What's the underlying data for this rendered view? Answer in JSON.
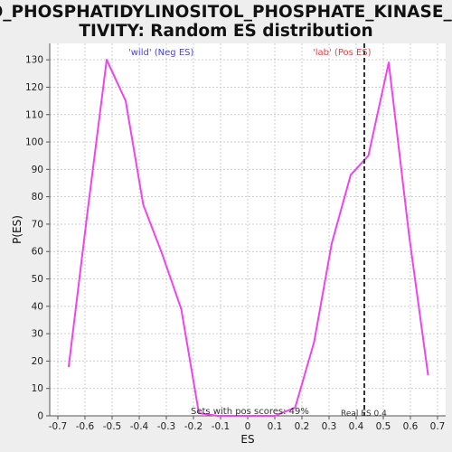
{
  "chart_data": {
    "type": "line",
    "title_lines": [
      "GO_PHOSPHATIDYLINOSITOL_PHOSPHATE_KINASE_AC",
      "TIVITY: Random ES distribution"
    ],
    "xlabel": "ES",
    "ylabel": "P(ES)",
    "xlim": [
      -0.73,
      0.73
    ],
    "ylim": [
      0,
      136
    ],
    "xticks": [
      -0.7,
      -0.6,
      -0.5,
      -0.4,
      -0.3,
      -0.2,
      -0.1,
      0.0,
      0.1,
      0.2,
      0.3,
      0.4,
      0.5,
      0.6,
      0.7
    ],
    "xtick_labels": [
      "-0.7",
      "-0.6",
      "-0.5",
      "-0.4",
      "-0.3",
      "-0.2",
      "-0.1",
      "0",
      "0.1",
      "0.2",
      "0.3",
      "0.4",
      "0.5",
      "0.6",
      "0.7"
    ],
    "yticks": [
      0,
      10,
      20,
      30,
      40,
      50,
      60,
      70,
      80,
      90,
      100,
      110,
      120,
      130
    ],
    "grid": true,
    "series": [
      {
        "color": "#ee44ee",
        "x": [
          -0.66,
          -0.59,
          -0.52,
          -0.45,
          -0.385,
          -0.315,
          -0.245,
          -0.18,
          -0.11,
          -0.04,
          0.03,
          0.1,
          0.175,
          0.245,
          0.31,
          0.38,
          0.445,
          0.52,
          0.595,
          0.665
        ],
        "y": [
          18,
          75,
          130,
          115,
          77,
          59,
          39,
          1,
          0,
          0,
          0,
          0,
          3,
          27,
          63,
          88,
          95,
          129,
          66,
          15
        ]
      }
    ],
    "real_es": 0.43,
    "annotations": {
      "neg_label": "'wild' (Neg ES)",
      "pos_label": "'lab' (Pos ES)",
      "pos_scores": "Sets with pos scores: 49%",
      "real_es_label": "Real ES 0.4"
    },
    "colors": {
      "neg_label": "#4444dd",
      "pos_label": "#dd4444",
      "line": "#ee44ee",
      "real_es_line": "#333333"
    }
  }
}
